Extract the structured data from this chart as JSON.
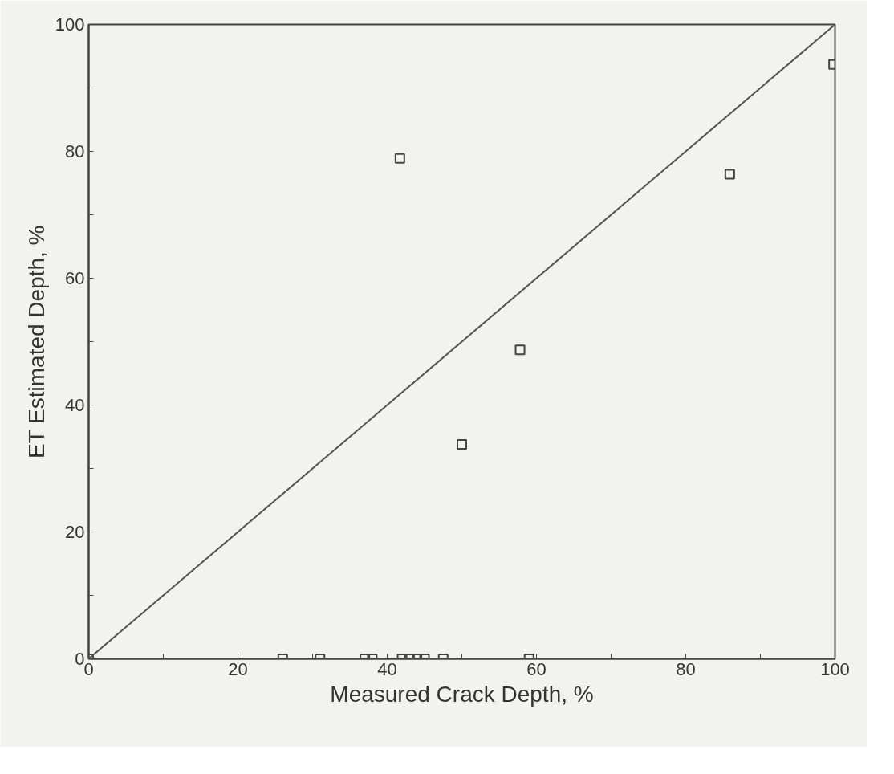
{
  "chart_data": {
    "type": "scatter",
    "xlabel": "Measured Crack Depth, %",
    "ylabel": "ET Estimated Depth, %",
    "xlim": [
      0,
      100
    ],
    "ylim": [
      0,
      100
    ],
    "xticks": [
      0,
      {
        "value": 10,
        "label": null
      },
      20,
      {
        "value": 30,
        "label": null
      },
      40,
      {
        "value": 50,
        "label": null
      },
      60,
      {
        "value": 70,
        "label": null
      },
      80,
      {
        "value": 90,
        "label": null
      },
      100
    ],
    "yticks": [
      0,
      {
        "value": 10,
        "label": null
      },
      20,
      {
        "value": 30,
        "label": null
      },
      40,
      {
        "value": 50,
        "label": null
      },
      60,
      {
        "value": 70,
        "label": null
      },
      80,
      {
        "value": 90,
        "label": null
      },
      100
    ],
    "grid": false,
    "series": [
      {
        "color": "#444444",
        "marker": "square",
        "x": [
          0,
          26,
          31,
          37,
          38,
          42,
          43,
          44,
          45,
          47.5,
          59,
          41.7,
          85.9,
          57.8,
          50,
          99.8
        ],
        "values": [
          0,
          0,
          0,
          0,
          0,
          0,
          0,
          0,
          0,
          0,
          0,
          78.9,
          76.4,
          48.7,
          33.8,
          93.7
        ]
      },
      {
        "type": "line",
        "color": "#555555",
        "x": [
          0,
          100
        ],
        "values": [
          0,
          100
        ]
      }
    ]
  }
}
